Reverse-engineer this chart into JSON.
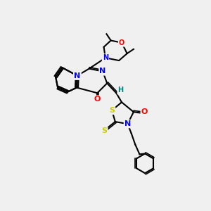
{
  "background_color": "#f0f0f0",
  "atom_colors": {
    "N": "#0000ff",
    "O": "#ff0000",
    "S": "#cccc00",
    "C": "#000000",
    "H": "#008080"
  },
  "bond_color": "#000000",
  "figsize": [
    3.0,
    3.0
  ],
  "dpi": 100
}
